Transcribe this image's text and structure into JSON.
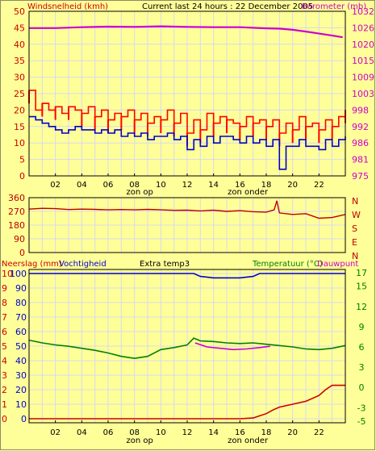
{
  "colors": {
    "background": "#ffff99",
    "grid": "#d8d8f0",
    "axis_red": "#cc0000",
    "axis_magenta": "#cc00cc",
    "axis_green": "#008000",
    "axis_blue": "#0000cc",
    "axis_dark": "#000000",
    "gust_red": "#ff0000",
    "wind_blue": "#0000cc",
    "pressure_magenta": "#cc00cc",
    "direction_darkred": "#bb0000",
    "humidity_blue": "#0000cc",
    "temp_green": "#008000",
    "dew_magenta": "#cc00cc",
    "rain_red": "#cc0000"
  },
  "header": {
    "title": "Current last 24 hours : 22 December 2005"
  },
  "chart_data": [
    {
      "type": "line",
      "panel": "wind-pressure",
      "title": "Current last 24 hours : 22 December 2005",
      "ylabel_left": "Windsnelheid (kmh)",
      "ylabel_right": "Barometer (mb)",
      "y_ticks_left": [
        "0",
        "5",
        "10",
        "15",
        "20",
        "25",
        "30",
        "35",
        "40",
        "45",
        "50"
      ],
      "y_ticks_right": [
        "975",
        "981",
        "986",
        "992",
        "998",
        "1003",
        "1009",
        "1015",
        "1020",
        "1026",
        "1032"
      ],
      "ylim_left": [
        0,
        50
      ],
      "ylim_right": [
        975,
        1032
      ],
      "x_hours": [
        0,
        24
      ],
      "x_tick_labels": [
        "02",
        "04",
        "06",
        "08",
        "10",
        "12",
        "14",
        "16",
        "18",
        "20",
        "22"
      ],
      "x_annotations": [
        {
          "label": "zon op",
          "hour": 8.4
        },
        {
          "label": "zon onder",
          "hour": 16.6
        }
      ],
      "series": [
        {
          "name": "",
          "kind": "gust",
          "axis": "left",
          "x": [
            0,
            0.5,
            1,
            1.5,
            2,
            2.5,
            3,
            3.5,
            4,
            4.5,
            5,
            5.5,
            6,
            6.5,
            7,
            7.5,
            8,
            8.5,
            9,
            9.5,
            10,
            10.5,
            11,
            11.5,
            12,
            12.5,
            13,
            13.5,
            14,
            14.5,
            15,
            15.5,
            16,
            16.5,
            17,
            17.5,
            18,
            18.5,
            19,
            19.5,
            20,
            20.5,
            21,
            21.5,
            22,
            22.5,
            23,
            23.5,
            24
          ],
          "values": [
            26,
            20,
            22,
            20,
            21,
            19,
            21,
            20,
            19,
            21,
            18,
            20,
            17,
            19,
            18,
            20,
            17,
            19,
            16,
            18,
            17,
            20,
            16,
            19,
            13,
            17,
            14,
            19,
            16,
            18,
            17,
            16,
            15,
            18,
            16,
            17,
            15,
            17,
            13,
            16,
            14,
            18,
            15,
            16,
            14,
            17,
            15,
            18,
            20
          ]
        },
        {
          "name": "",
          "kind": "average",
          "axis": "left",
          "x": [
            0,
            0.5,
            1,
            1.5,
            2,
            2.5,
            3,
            3.5,
            4,
            4.5,
            5,
            5.5,
            6,
            6.5,
            7,
            7.5,
            8,
            8.5,
            9,
            9.5,
            10,
            10.5,
            11,
            11.5,
            12,
            12.5,
            13,
            13.5,
            14,
            14.5,
            15,
            15.5,
            16,
            16.5,
            17,
            17.5,
            18,
            18.5,
            19,
            19.5,
            20,
            20.5,
            21,
            21.5,
            22,
            22.5,
            23,
            23.5,
            24
          ],
          "values": [
            18,
            17,
            16,
            15,
            14,
            13,
            14,
            15,
            14,
            14,
            13,
            14,
            13,
            14,
            12,
            13,
            12,
            13,
            11,
            12,
            12,
            13,
            11,
            12,
            8,
            11,
            9,
            12,
            10,
            12,
            12,
            11,
            10,
            12,
            10,
            11,
            9,
            11,
            2,
            9,
            9,
            11,
            9,
            9,
            8,
            11,
            9,
            11,
            12
          ]
        },
        {
          "name": "",
          "kind": "pressure",
          "axis": "right",
          "x": [
            0,
            2,
            4,
            6,
            8,
            10,
            12,
            14,
            16,
            18,
            19,
            20,
            21,
            22,
            23,
            23.8
          ],
          "values": [
            1026.2,
            1026.2,
            1026.5,
            1026.7,
            1026.6,
            1026.8,
            1026.6,
            1026.5,
            1026.5,
            1026.1,
            1026.0,
            1025.6,
            1025.0,
            1024.3,
            1023.6,
            1023.0
          ]
        }
      ]
    },
    {
      "type": "line",
      "panel": "wind-direction",
      "y_ticks_left": [
        "360",
        "270",
        "180",
        "90",
        "0"
      ],
      "ylim_left": [
        0,
        360
      ],
      "right_labels": [
        "N",
        "W",
        "S",
        "E",
        "N"
      ],
      "series": [
        {
          "name": "",
          "kind": "direction",
          "x": [
            0,
            1,
            2,
            3,
            4,
            5,
            6,
            7,
            8,
            9,
            10,
            11,
            12,
            13,
            14,
            15,
            16,
            17,
            18,
            18.6,
            18.8,
            19,
            20,
            21,
            22,
            23,
            24
          ],
          "values": [
            285,
            290,
            288,
            282,
            285,
            283,
            280,
            282,
            280,
            283,
            280,
            277,
            278,
            273,
            278,
            270,
            275,
            268,
            265,
            280,
            340,
            260,
            250,
            255,
            225,
            230,
            250
          ]
        }
      ]
    },
    {
      "type": "line",
      "panel": "climate",
      "legend": [
        "Neerslag (mm)",
        "Vochtigheid",
        "Extra temp3",
        "Temperatuur (°C)",
        "Dauwpunt"
      ],
      "y_ticks_rain": [
        "0",
        "1",
        "2",
        "3",
        "4",
        "5",
        "6",
        "7",
        "8",
        "9",
        "10"
      ],
      "y_ticks_humidity": [
        "0",
        "10",
        "20",
        "30",
        "40",
        "50",
        "60",
        "70",
        "80",
        "90",
        "100"
      ],
      "y_ticks_temp": [
        "-5",
        "-3",
        "0",
        "3",
        "6",
        "9",
        "12",
        "15",
        "17"
      ],
      "ylim_humidity": [
        0,
        100
      ],
      "ylim_temp": [
        -5,
        17
      ],
      "x_tick_labels": [
        "02",
        "04",
        "06",
        "08",
        "10",
        "12",
        "14",
        "16",
        "18",
        "20",
        "22"
      ],
      "x_annotations": [
        {
          "label": "zon op",
          "hour": 8.4
        },
        {
          "label": "zon onder",
          "hour": 16.6
        }
      ],
      "series": [
        {
          "name": "",
          "kind": "humidity",
          "axis": "humidity",
          "x": [
            0,
            12,
            12.5,
            13,
            14,
            16,
            17,
            17.5,
            18,
            19,
            20,
            21,
            22,
            23,
            24
          ],
          "values": [
            100,
            100,
            100,
            98,
            97,
            97,
            98,
            100,
            100,
            100,
            100,
            100,
            100,
            100,
            100
          ]
        },
        {
          "name": "",
          "kind": "temperature",
          "axis": "temp",
          "x": [
            0,
            1,
            2,
            3,
            4,
            5,
            6,
            7,
            8,
            9,
            10,
            11,
            12,
            12.5,
            13,
            14,
            15,
            16,
            17,
            18,
            19,
            20,
            21,
            22,
            23,
            24
          ],
          "values": [
            7.0,
            6.6,
            6.3,
            6.1,
            5.8,
            5.5,
            5.1,
            4.6,
            4.3,
            4.6,
            5.6,
            5.9,
            6.3,
            7.3,
            6.9,
            6.8,
            6.6,
            6.5,
            6.6,
            6.4,
            6.2,
            6.0,
            5.7,
            5.6,
            5.8,
            6.2
          ]
        },
        {
          "name": "",
          "kind": "dewpoint",
          "axis": "temp",
          "x": [
            12.6,
            13.5,
            14.5,
            15.5,
            16.5,
            17.5,
            18.3
          ],
          "values": [
            6.6,
            6.0,
            5.8,
            5.6,
            5.7,
            5.9,
            6.1
          ]
        },
        {
          "name": "",
          "kind": "rain",
          "axis": "rain",
          "x": [
            0,
            16,
            17,
            17.5,
            18,
            18.5,
            19,
            20,
            21,
            22,
            22.5,
            23,
            24
          ],
          "values": [
            0,
            0,
            0.05,
            0.2,
            0.35,
            0.6,
            0.8,
            1.0,
            1.2,
            1.6,
            2.0,
            2.3,
            2.3
          ]
        }
      ]
    }
  ]
}
